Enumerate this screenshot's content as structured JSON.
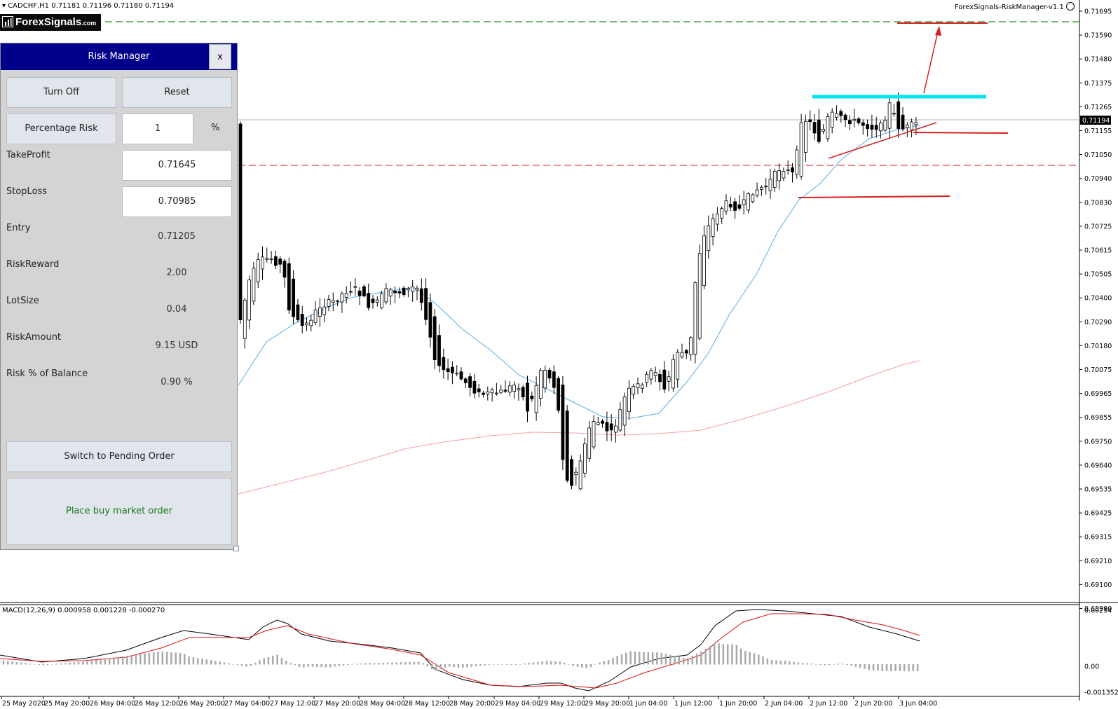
{
  "chart_header": {
    "symbol_info": "CADCHF,H1  0.71181 0.71196 0.71180 0.71194",
    "expert_name": "ForexSignals-RiskManager-v1.1"
  },
  "logo": {
    "text": "ForexSignals",
    "suffix": ".com"
  },
  "risk_manager": {
    "title": "Risk Manager",
    "close_label": "x",
    "turn_off_label": "Turn Off",
    "reset_label": "Reset",
    "risk_mode_label": "Percentage Risk",
    "risk_value": "1",
    "risk_unit": "%",
    "take_profit_label": "TakeProfit",
    "take_profit_value": "0.71645",
    "stop_loss_label": "StopLoss",
    "stop_loss_value": "0.70985",
    "entry_label": "Entry",
    "entry_value": "0.71205",
    "risk_reward_label": "RiskReward",
    "risk_reward_value": "2.00",
    "lot_size_label": "LotSize",
    "lot_size_value": "0.04",
    "risk_amount_label": "RiskAmount",
    "risk_amount_value": "9.15 USD",
    "risk_pct_label": "Risk % of Balance",
    "risk_pct_value": "0.90 %",
    "switch_label": "Switch to Pending Order",
    "place_order_label": "Place buy market order",
    "place_order_color": "#1a7a1a"
  },
  "macd": {
    "label": "MACD(12,26,9) 0.000958 0.001228 -0.000270",
    "axis_labels": [
      "0.00254",
      "0.00",
      "-0.001352"
    ]
  },
  "chart_data": {
    "type": "candlestick",
    "instrument": "CADCHF",
    "timeframe": "H1",
    "current_price": "0.71194",
    "price_labels": [
      "0.71695",
      "0.71590",
      "0.71480",
      "0.71375",
      "0.71265",
      "0.71155",
      "0.71050",
      "0.70940",
      "0.70830",
      "0.70725",
      "0.70615",
      "0.70505",
      "0.70400",
      "0.70290",
      "0.70180",
      "0.70075",
      "0.69965",
      "0.69855",
      "0.69750",
      "0.69640",
      "0.69535",
      "0.69425",
      "0.69315",
      "0.69210",
      "0.69100",
      "0.68990"
    ],
    "time_labels": [
      "25 May 2020",
      "25 May 20:00",
      "26 May 04:00",
      "26 May 12:00",
      "26 May 20:00",
      "27 May 04:00",
      "27 May 12:00",
      "27 May 20:00",
      "28 May 04:00",
      "28 May 12:00",
      "28 May 20:00",
      "29 May 04:00",
      "29 May 12:00",
      "29 May 20:00",
      "1 Jun 04:00",
      "1 Jun 12:00",
      "1 Jun 20:00",
      "2 Jun 04:00",
      "2 Jun 12:00",
      "2 Jun 20:00",
      "3 Jun 04:00"
    ],
    "y_range": [
      0.6899,
      0.71725
    ],
    "take_profit_level": 0.71645,
    "stop_loss_level": 0.70985,
    "colors": {
      "tp_line": "#1e8c1e",
      "sl_line": "#d42020",
      "fast_ma": "#5aaee6",
      "slow_ma": "#f5a0a0",
      "resistance": "#00e5ee",
      "annotation": "#d42020"
    }
  }
}
